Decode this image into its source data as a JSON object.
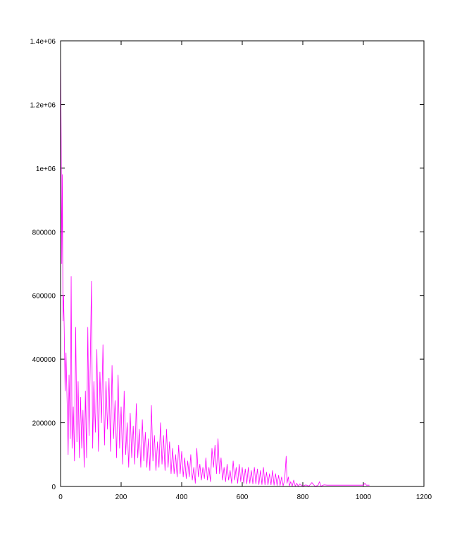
{
  "chart_data": {
    "type": "line",
    "title": "",
    "xlabel": "",
    "ylabel": "",
    "xlim": [
      0,
      1200
    ],
    "ylim": [
      0,
      1400000
    ],
    "x_ticks": [
      0,
      200,
      400,
      600,
      800,
      1000,
      1200
    ],
    "x_tick_labels": [
      "0",
      "200",
      "400",
      "600",
      "800",
      "1000",
      "1200"
    ],
    "y_ticks": [
      0,
      200000,
      400000,
      600000,
      800000,
      1000000,
      1200000,
      1400000
    ],
    "y_tick_labels": [
      "0",
      "200000",
      "400000",
      "600000",
      "800000",
      "1e+06",
      "1.2e+06",
      "1.4e+06"
    ],
    "grid": false,
    "legend": "none",
    "series": [
      {
        "color": "#ff00ff",
        "points": [
          [
            0,
            1380000
          ],
          [
            2,
            1100000
          ],
          [
            4,
            700000
          ],
          [
            6,
            980000
          ],
          [
            8,
            520000
          ],
          [
            10,
            600000
          ],
          [
            12,
            500000
          ],
          [
            15,
            300000
          ],
          [
            18,
            420000
          ],
          [
            22,
            250000
          ],
          [
            25,
            100000
          ],
          [
            28,
            350000
          ],
          [
            32,
            150000
          ],
          [
            35,
            660000
          ],
          [
            38,
            120000
          ],
          [
            42,
            250000
          ],
          [
            46,
            80000
          ],
          [
            50,
            500000
          ],
          [
            54,
            140000
          ],
          [
            58,
            330000
          ],
          [
            62,
            90000
          ],
          [
            66,
            280000
          ],
          [
            70,
            120000
          ],
          [
            74,
            240000
          ],
          [
            78,
            60000
          ],
          [
            82,
            300000
          ],
          [
            86,
            90000
          ],
          [
            90,
            500000
          ],
          [
            94,
            160000
          ],
          [
            98,
            380000
          ],
          [
            102,
            645000
          ],
          [
            106,
            120000
          ],
          [
            110,
            330000
          ],
          [
            115,
            170000
          ],
          [
            120,
            430000
          ],
          [
            125,
            110000
          ],
          [
            130,
            360000
          ],
          [
            135,
            200000
          ],
          [
            140,
            445000
          ],
          [
            145,
            130000
          ],
          [
            150,
            330000
          ],
          [
            155,
            180000
          ],
          [
            160,
            340000
          ],
          [
            165,
            110000
          ],
          [
            170,
            380000
          ],
          [
            175,
            150000
          ],
          [
            180,
            270000
          ],
          [
            185,
            90000
          ],
          [
            190,
            350000
          ],
          [
            195,
            120000
          ],
          [
            200,
            250000
          ],
          [
            205,
            70000
          ],
          [
            210,
            300000
          ],
          [
            215,
            100000
          ],
          [
            220,
            200000
          ],
          [
            225,
            60000
          ],
          [
            230,
            230000
          ],
          [
            235,
            90000
          ],
          [
            240,
            190000
          ],
          [
            245,
            70000
          ],
          [
            250,
            260000
          ],
          [
            255,
            90000
          ],
          [
            260,
            180000
          ],
          [
            265,
            60000
          ],
          [
            270,
            210000
          ],
          [
            275,
            80000
          ],
          [
            280,
            170000
          ],
          [
            285,
            60000
          ],
          [
            290,
            150000
          ],
          [
            295,
            50000
          ],
          [
            300,
            255000
          ],
          [
            305,
            80000
          ],
          [
            310,
            160000
          ],
          [
            315,
            50000
          ],
          [
            320,
            140000
          ],
          [
            325,
            60000
          ],
          [
            330,
            200000
          ],
          [
            335,
            70000
          ],
          [
            340,
            160000
          ],
          [
            345,
            50000
          ],
          [
            350,
            180000
          ],
          [
            355,
            60000
          ],
          [
            360,
            140000
          ],
          [
            365,
            40000
          ],
          [
            370,
            120000
          ],
          [
            375,
            40000
          ],
          [
            380,
            100000
          ],
          [
            385,
            30000
          ],
          [
            390,
            130000
          ],
          [
            395,
            40000
          ],
          [
            400,
            110000
          ],
          [
            405,
            30000
          ],
          [
            410,
            90000
          ],
          [
            415,
            25000
          ],
          [
            420,
            80000
          ],
          [
            425,
            30000
          ],
          [
            430,
            100000
          ],
          [
            435,
            20000
          ],
          [
            440,
            60000
          ],
          [
            445,
            10000
          ],
          [
            450,
            120000
          ],
          [
            455,
            30000
          ],
          [
            460,
            70000
          ],
          [
            465,
            20000
          ],
          [
            470,
            60000
          ],
          [
            475,
            25000
          ],
          [
            480,
            90000
          ],
          [
            485,
            20000
          ],
          [
            490,
            60000
          ],
          [
            495,
            15000
          ],
          [
            500,
            120000
          ],
          [
            505,
            60000
          ],
          [
            510,
            130000
          ],
          [
            515,
            40000
          ],
          [
            520,
            150000
          ],
          [
            525,
            40000
          ],
          [
            530,
            90000
          ],
          [
            535,
            20000
          ],
          [
            540,
            60000
          ],
          [
            545,
            15000
          ],
          [
            550,
            70000
          ],
          [
            555,
            20000
          ],
          [
            560,
            50000
          ],
          [
            565,
            10000
          ],
          [
            570,
            80000
          ],
          [
            575,
            20000
          ],
          [
            580,
            60000
          ],
          [
            585,
            10000
          ],
          [
            590,
            70000
          ],
          [
            595,
            15000
          ],
          [
            600,
            60000
          ],
          [
            605,
            10000
          ],
          [
            610,
            55000
          ],
          [
            615,
            8000
          ],
          [
            620,
            60000
          ],
          [
            625,
            10000
          ],
          [
            630,
            50000
          ],
          [
            635,
            8000
          ],
          [
            640,
            60000
          ],
          [
            645,
            8000
          ],
          [
            650,
            55000
          ],
          [
            655,
            6000
          ],
          [
            660,
            50000
          ],
          [
            665,
            6000
          ],
          [
            670,
            60000
          ],
          [
            675,
            5000
          ],
          [
            680,
            45000
          ],
          [
            685,
            5000
          ],
          [
            690,
            40000
          ],
          [
            695,
            5000
          ],
          [
            700,
            50000
          ],
          [
            705,
            4000
          ],
          [
            710,
            40000
          ],
          [
            715,
            3000
          ],
          [
            720,
            35000
          ],
          [
            725,
            3000
          ],
          [
            730,
            30000
          ],
          [
            735,
            2000
          ],
          [
            740,
            20000
          ],
          [
            745,
            95000
          ],
          [
            748,
            10000
          ],
          [
            752,
            30000
          ],
          [
            756,
            2000
          ],
          [
            760,
            15000
          ],
          [
            765,
            1000
          ],
          [
            770,
            20000
          ],
          [
            775,
            1000
          ],
          [
            780,
            10000
          ],
          [
            785,
            500
          ],
          [
            790,
            8000
          ],
          [
            800,
            500
          ],
          [
            810,
            5000
          ],
          [
            820,
            1000
          ],
          [
            830,
            12000
          ],
          [
            840,
            800
          ],
          [
            850,
            3000
          ],
          [
            855,
            15000
          ],
          [
            860,
            1000
          ],
          [
            870,
            5000
          ],
          [
            880,
            4000
          ],
          [
            900,
            4000
          ],
          [
            950,
            4000
          ],
          [
            1000,
            4000
          ],
          [
            1005,
            10000
          ],
          [
            1010,
            4000
          ],
          [
            1020,
            4000
          ]
        ]
      }
    ]
  }
}
